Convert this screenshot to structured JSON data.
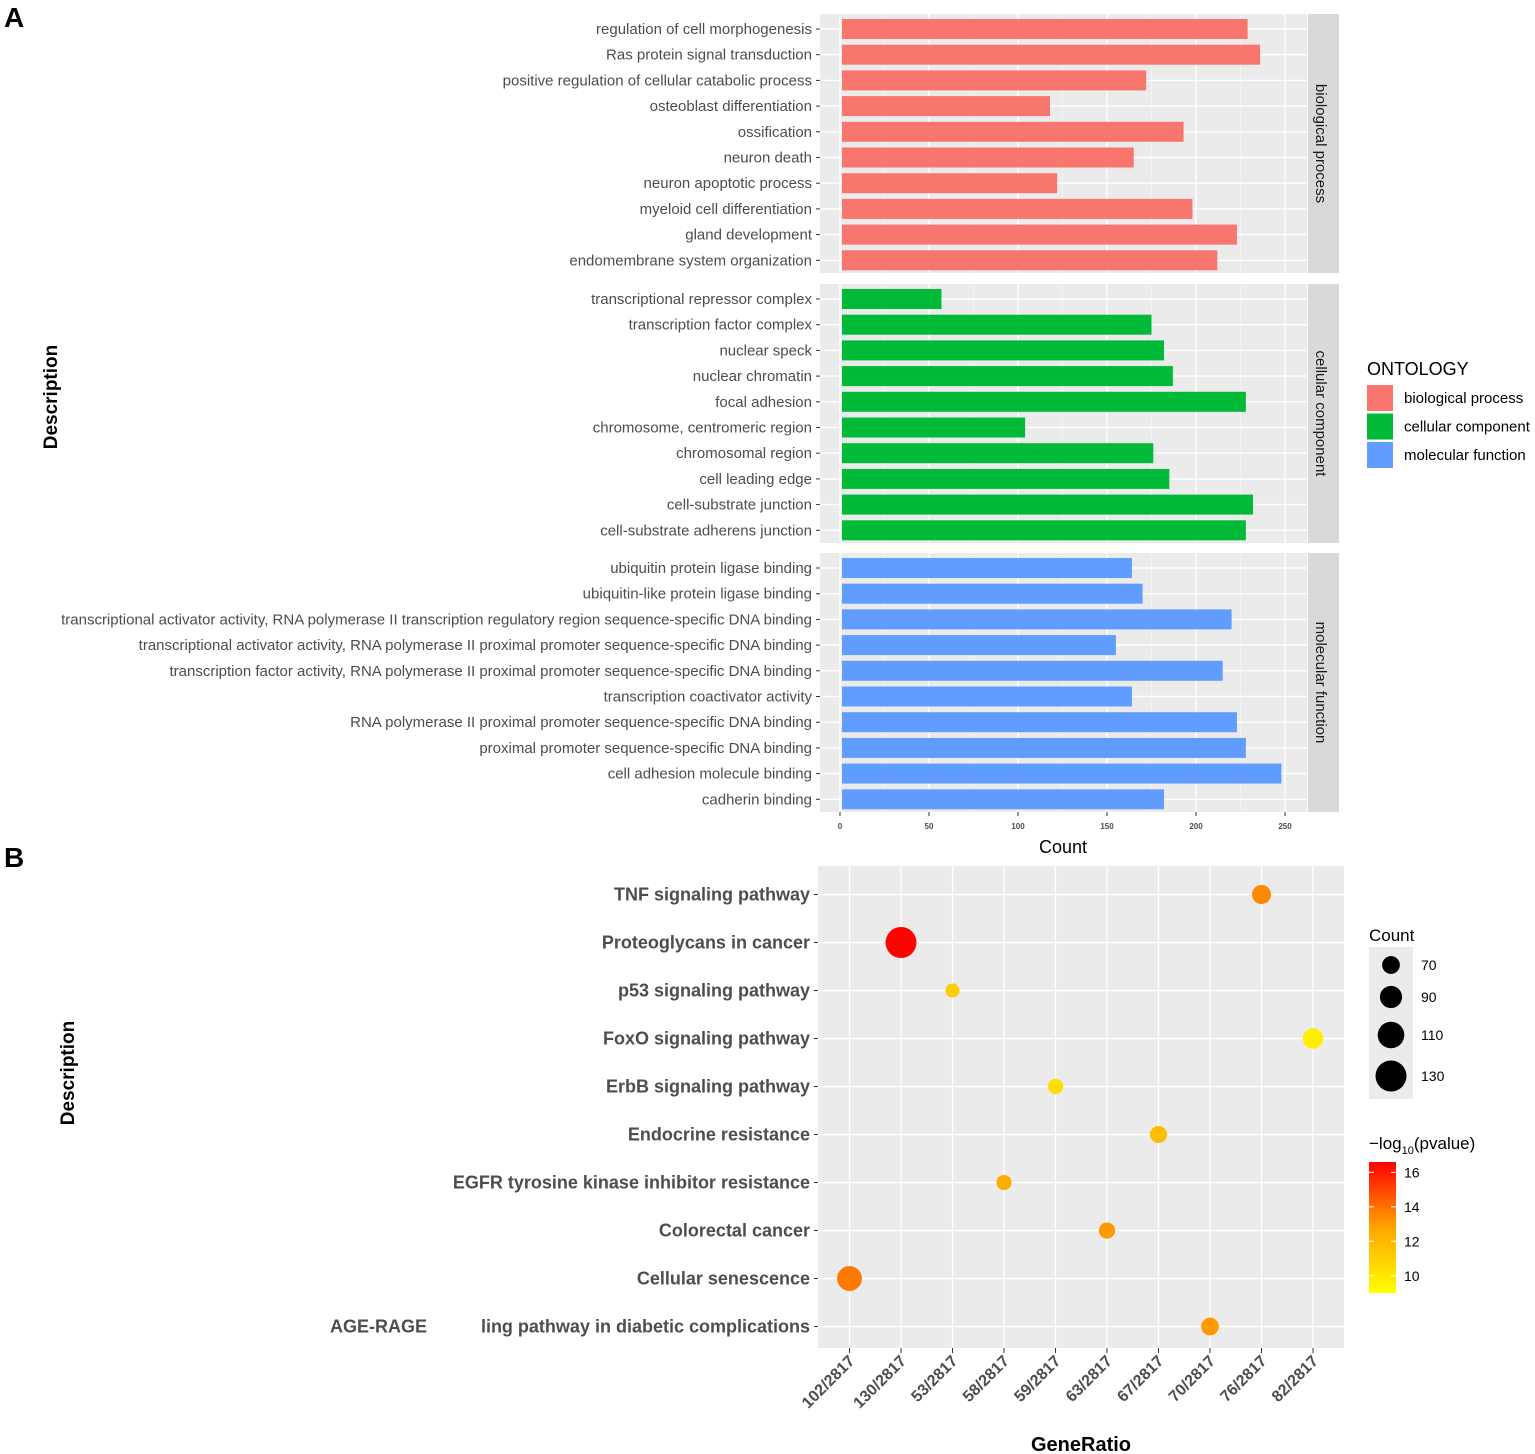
{
  "panel_a": {
    "label": "A",
    "chart_data": {
      "type": "bar",
      "orientation": "horizontal",
      "xlabel": "Count",
      "ylabel": "Description",
      "xlim": [
        0,
        265
      ],
      "xticks": [
        0,
        50,
        100,
        150,
        200,
        250
      ],
      "legend": {
        "title": "ONTOLOGY",
        "items": [
          {
            "name": "biological process",
            "color": "#F8766D"
          },
          {
            "name": "cellular component",
            "color": "#00BA38"
          },
          {
            "name": "molecular function",
            "color": "#619CFF"
          }
        ]
      },
      "facets": [
        {
          "name": "biological process",
          "color": "#F8766D",
          "categories": [
            "regulation of cell morphogenesis",
            "Ras protein signal transduction",
            "positive regulation of cellular catabolic process",
            "osteoblast differentiation",
            "ossification",
            "neuron death",
            "neuron apoptotic process",
            "myeloid cell differentiation",
            "gland development",
            "endomembrane system organization"
          ],
          "values": [
            229,
            236,
            172,
            118,
            193,
            165,
            122,
            198,
            223,
            212
          ]
        },
        {
          "name": "cellular component",
          "color": "#00BA38",
          "categories": [
            "transcriptional repressor complex",
            "transcription factor complex",
            "nuclear speck",
            "nuclear chromatin",
            "focal adhesion",
            "chromosome, centromeric region",
            "chromosomal region",
            "cell leading edge",
            "cell-substrate junction",
            "cell-substrate adherens junction"
          ],
          "values": [
            57,
            175,
            182,
            187,
            228,
            104,
            176,
            185,
            232,
            228
          ]
        },
        {
          "name": "molecular function",
          "color": "#619CFF",
          "categories": [
            "ubiquitin protein ligase binding",
            "ubiquitin-like protein ligase binding",
            "transcriptional activator activity, RNA polymerase II transcription regulatory region sequence-specific DNA binding",
            "transcriptional activator activity, RNA polymerase II proximal promoter sequence-specific DNA binding",
            "transcription factor activity, RNA polymerase II proximal promoter sequence-specific DNA binding",
            "transcription coactivator activity",
            "RNA polymerase II proximal promoter sequence-specific DNA binding",
            "proximal promoter sequence-specific DNA binding",
            "cell adhesion molecule binding",
            "cadherin binding"
          ],
          "values": [
            164,
            170,
            220,
            155,
            215,
            164,
            223,
            228,
            248,
            182
          ]
        }
      ]
    }
  },
  "panel_b": {
    "label": "B",
    "chart_data": {
      "type": "scatter",
      "xlabel": "GeneRatio",
      "ylabel": "Description",
      "x_categories": [
        "102/2817",
        "130/2817",
        "53/2817",
        "58/2817",
        "59/2817",
        "63/2817",
        "67/2817",
        "70/2817",
        "76/2817",
        "82/2817"
      ],
      "y_categories": [
        "TNF signaling pathway",
        "Proteoglycans in cancer",
        "p53 signaling pathway",
        "FoxO signaling pathway",
        "ErbB signaling pathway",
        "Endocrine resistance",
        "EGFR tyrosine kinase inhibitor resistance",
        "Colorectal cancer",
        "Cellular senescence",
        "AGE-RAGE signaling pathway in diabetic complications"
      ],
      "y_label_fragments": [
        "AGE-RAGE",
        "ling pathway in diabetic complications"
      ],
      "points": [
        {
          "y": "TNF signaling pathway",
          "x": "76/2817",
          "count": 76,
          "log10p": 12.5
        },
        {
          "y": "Proteoglycans in cancer",
          "x": "130/2817",
          "count": 130,
          "log10p": 16.5
        },
        {
          "y": "p53 signaling pathway",
          "x": "53/2817",
          "count": 53,
          "log10p": 10.5
        },
        {
          "y": "FoxO signaling pathway",
          "x": "82/2817",
          "count": 82,
          "log10p": 9.5
        },
        {
          "y": "ErbB signaling pathway",
          "x": "59/2817",
          "count": 59,
          "log10p": 10.0
        },
        {
          "y": "Endocrine resistance",
          "x": "67/2817",
          "count": 67,
          "log10p": 11.0
        },
        {
          "y": "EGFR tyrosine kinase inhibitor resistance",
          "x": "58/2817",
          "count": 58,
          "log10p": 11.5
        },
        {
          "y": "Colorectal cancer",
          "x": "63/2817",
          "count": 63,
          "log10p": 12.0
        },
        {
          "y": "Cellular senescence",
          "x": "102/2817",
          "count": 102,
          "log10p": 13.0
        },
        {
          "y": "AGE-RAGE signaling pathway in diabetic complications",
          "x": "70/2817",
          "count": 70,
          "log10p": 12.0
        }
      ],
      "size_legend": {
        "title": "Count",
        "breaks": [
          70,
          90,
          110,
          130
        ]
      },
      "color_legend": {
        "title_prefix": "−log",
        "title_sub": "10",
        "title_suffix": "(pvalue)",
        "breaks": [
          10,
          12,
          14,
          16
        ],
        "range": [
          9,
          16.6
        ],
        "low_color": "#FFFF00",
        "high_color": "#FF0000"
      }
    }
  }
}
